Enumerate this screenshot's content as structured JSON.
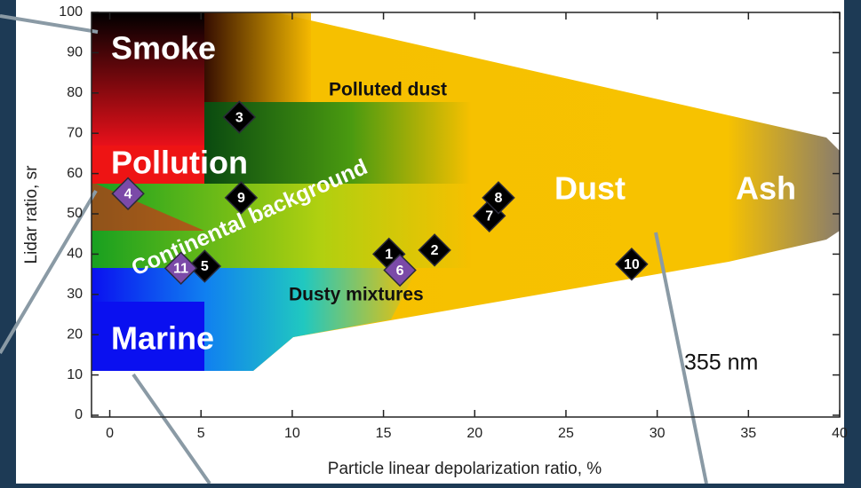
{
  "chart_data": {
    "type": "scatter",
    "xlabel": "Particle linear depolarization ratio, %",
    "ylabel": "Lidar ratio, sr",
    "xlim": [
      -1,
      40
    ],
    "ylim": [
      0,
      100
    ],
    "xticks": [
      0,
      5,
      10,
      15,
      20,
      25,
      30,
      35,
      40
    ],
    "yticks": [
      0,
      10,
      20,
      30,
      40,
      50,
      60,
      70,
      80,
      90,
      100
    ],
    "annotations": [
      "Smoke",
      "Pollution",
      "Marine",
      "Dust",
      "Ash",
      "Polluted dust",
      "Continental background",
      "Dusty mixtures",
      "355 nm"
    ],
    "points": {
      "labels": [
        "1",
        "2",
        "3",
        "4",
        "5",
        "6",
        "7",
        "8",
        "9",
        "10",
        "11"
      ],
      "x": [
        15.3,
        17.8,
        7.1,
        1,
        5.2,
        15.9,
        20.8,
        21.3,
        7.2,
        28.6,
        3.9
      ],
      "y": [
        40,
        41,
        74,
        55,
        37,
        36,
        49.5,
        54,
        54,
        37.5,
        36.5
      ],
      "colors": [
        "#000000",
        "#000000",
        "#000000",
        "#7b4aa8",
        "#000000",
        "#7b4aa8",
        "#000000",
        "#000000",
        "#000000",
        "#000000",
        "#7b4aa8"
      ]
    }
  }
}
